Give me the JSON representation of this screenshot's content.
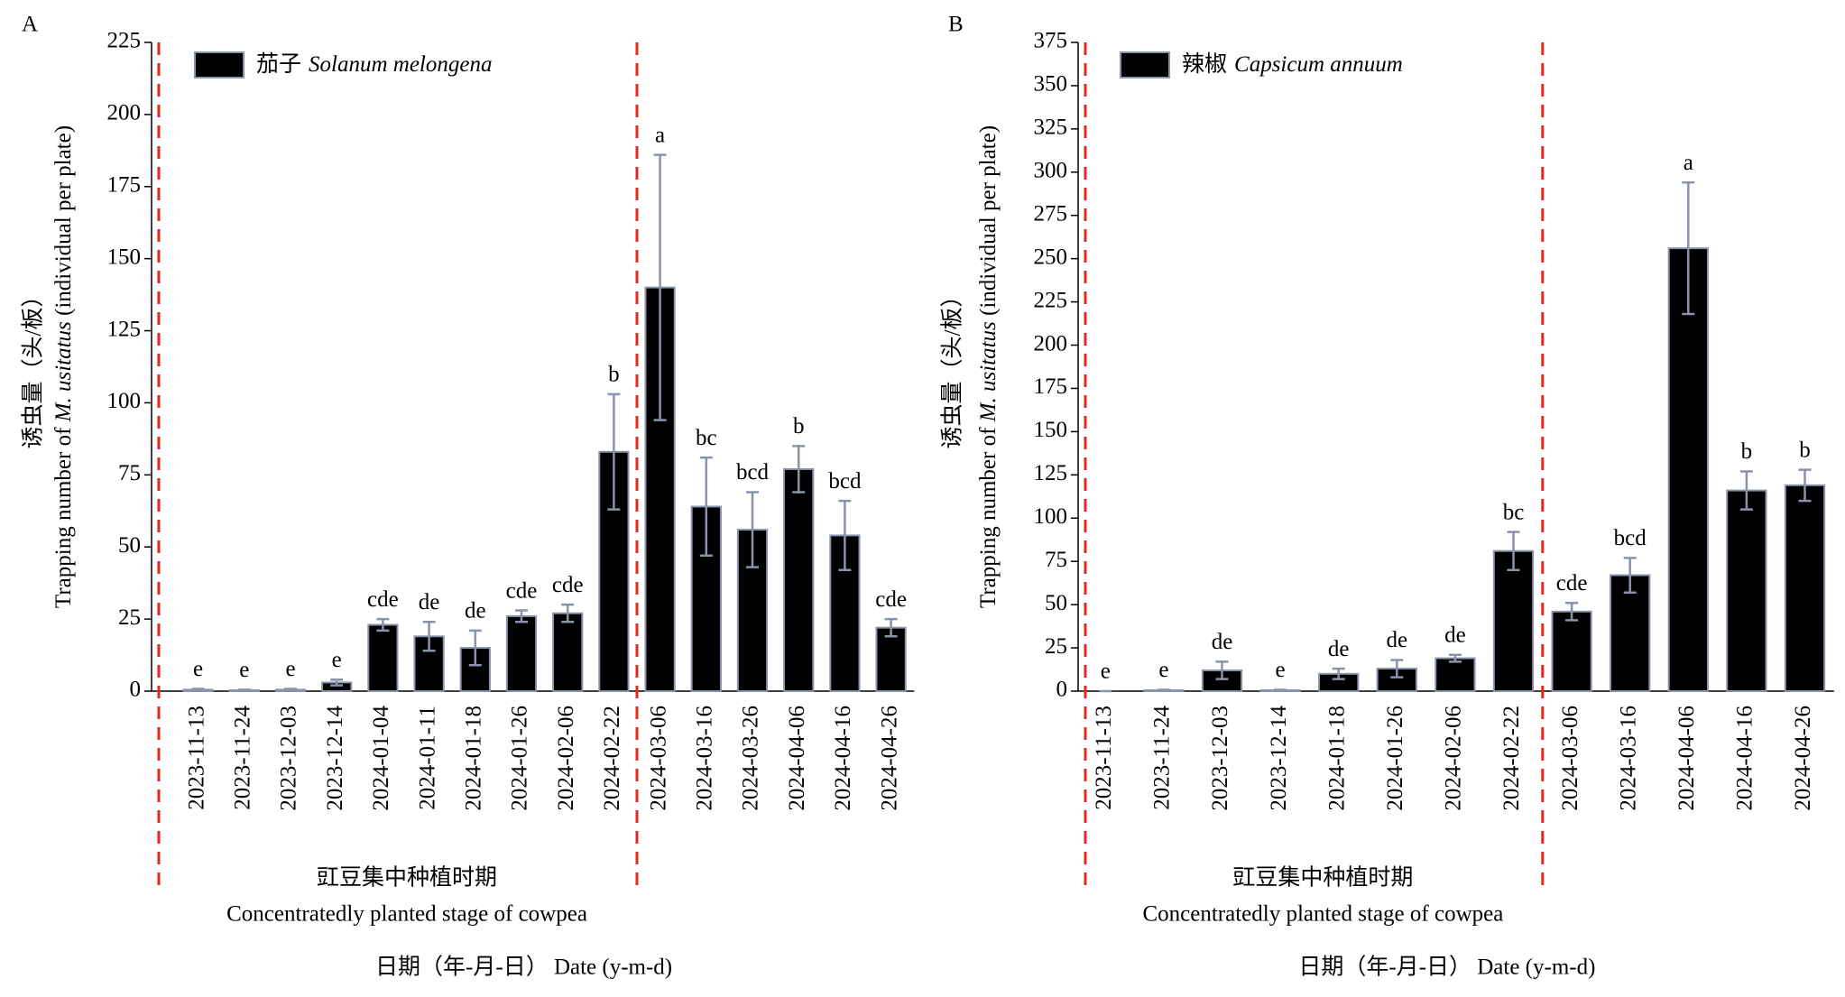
{
  "chart_data": [
    {
      "type": "bar",
      "panel": "A",
      "y_label_zh": "诱虫量（头/板）",
      "y_label_en": [
        "Trapping number of ",
        "M. usitatus",
        " (individual per plate)"
      ],
      "categories": [
        "2023-11-13",
        "2023-11-24",
        "2023-12-03",
        "2023-12-14",
        "2024-01-04",
        "2024-01-11",
        "2024-01-18",
        "2024-01-26",
        "2024-02-06",
        "2024-02-22",
        "2024-03-06",
        "2024-03-16",
        "2024-03-26",
        "2024-04-06",
        "2024-04-16",
        "2024-04-26"
      ],
      "series": [
        {
          "name": "茄子",
          "latin_name": "Solanum melongena",
          "color": "#000000",
          "values": [
            0.5,
            0.3,
            0.5,
            3,
            23,
            19,
            15,
            26,
            27,
            83,
            140,
            64,
            56,
            77,
            54,
            22
          ],
          "errors": [
            0.3,
            0.2,
            0.3,
            1,
            2,
            5,
            6,
            2,
            3,
            20,
            46,
            17,
            13,
            8,
            12,
            3
          ],
          "letters": [
            "e",
            "e",
            "e",
            "e",
            "cde",
            "de",
            "de",
            "cde",
            "cde",
            "b",
            "a",
            "bc",
            "bcd",
            "b",
            "bcd",
            "cde"
          ]
        }
      ],
      "ylim": [
        0,
        225
      ],
      "yticks": [
        0,
        25,
        50,
        75,
        100,
        125,
        150,
        175,
        200,
        225
      ],
      "annotation": [
        "豇豆集中种植时期",
        "Concentratedly planted stage of  cowpea"
      ],
      "x_label": "日期（年-月-日） Date (y-m-d)"
    },
    {
      "type": "bar",
      "panel": "B",
      "y_label_zh": "诱虫量（头/板）",
      "y_label_en": [
        "Trapping number of ",
        "M. usitatus",
        " (individual per plate)"
      ],
      "categories": [
        "2023-11-13",
        "2023-11-24",
        "2023-12-03",
        "2023-12-14",
        "2024-01-18",
        "2024-01-26",
        "2024-02-06",
        "2024-02-22",
        "2024-03-06",
        "2024-03-16",
        "2024-04-06",
        "2024-04-16",
        "2024-04-26"
      ],
      "series": [
        {
          "name": "辣椒",
          "latin_name": "Capsicum annuum",
          "color": "#000000",
          "values": [
            0,
            0.5,
            12,
            0.5,
            10,
            13,
            19,
            81,
            46,
            67,
            256,
            116,
            119
          ],
          "errors": [
            0,
            0.3,
            5,
            0.3,
            3,
            5,
            2,
            11,
            5,
            10,
            38,
            11,
            9
          ],
          "letters": [
            "e",
            "e",
            "de",
            "e",
            "de",
            "de",
            "de",
            "bc",
            "cde",
            "bcd",
            "a",
            "b",
            "b"
          ]
        }
      ],
      "ylim": [
        0,
        375
      ],
      "yticks": [
        0,
        25,
        50,
        75,
        100,
        125,
        150,
        175,
        200,
        225,
        250,
        275,
        300,
        325,
        350,
        375
      ],
      "annotation": [
        "豇豆集中种植时期",
        "Concentratedly planted stage of  cowpea"
      ],
      "x_label": "日期（年-月-日） Date (y-m-d)"
    }
  ]
}
